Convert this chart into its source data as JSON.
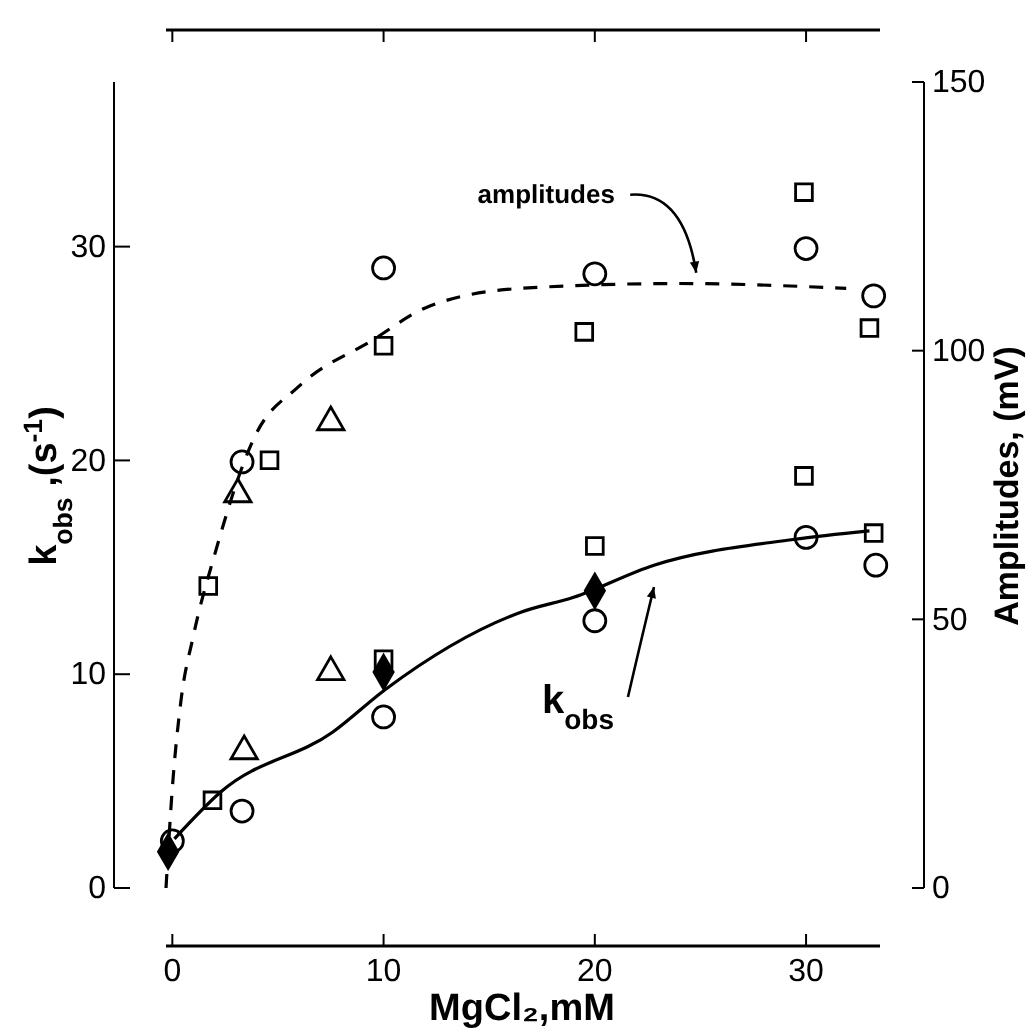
{
  "chart_data": {
    "type": "scatter",
    "xlabel": "MgCl₂,mM",
    "ylabel": "k$_{obs}$ ,(s$^{-1}$)",
    "y2label": "Amplitudes, (mV)",
    "xlim": [
      -0.3,
      33.5
    ],
    "xticks": [
      0,
      10,
      20,
      30
    ],
    "ylim": [
      0,
      37.7
    ],
    "yticks": [
      0,
      10,
      20,
      30
    ],
    "y2lim": [
      0,
      150
    ],
    "y2ticks": [
      0,
      50,
      100,
      150
    ],
    "grid": false,
    "annotations": [
      {
        "text": "amplitudes",
        "x": 24.8,
        "y": 28.5
      },
      {
        "text": "k$_{obs}$",
        "x": 22.8,
        "y": 13.8
      }
    ],
    "series": [
      {
        "marker": "circle",
        "color": "#000000",
        "axis": "y2",
        "x": [
          3.3,
          10,
          20,
          30,
          33.2
        ],
        "values": [
          79.3,
          115.4,
          114.3,
          119,
          110.2
        ]
      },
      {
        "marker": "square",
        "color": "#000000",
        "axis": "y2",
        "x": [
          1.7,
          4.6,
          10,
          19.5,
          29.9,
          29.9,
          33
        ],
        "values": [
          56.2,
          79.6,
          100.9,
          103.5,
          129.5,
          76.7,
          104.2
        ]
      },
      {
        "marker": "triangle",
        "color": "#000000",
        "axis": "y2",
        "x": [
          3.1,
          7.5
        ],
        "values": [
          73.3,
          86.7
        ]
      },
      {
        "marker": "circle",
        "color": "#000000",
        "x": [
          0,
          3.3,
          10,
          20,
          30,
          33.3
        ],
        "values": [
          2.2,
          3.6,
          8.0,
          12.5,
          16.4,
          15.1
        ]
      },
      {
        "marker": "square",
        "color": "#000000",
        "x": [
          1.9,
          10,
          20,
          33.2
        ],
        "values": [
          4.1,
          10.7,
          16.0,
          16.6
        ]
      },
      {
        "marker": "triangle",
        "color": "#000000",
        "x": [
          3.4,
          7.5
        ],
        "values": [
          6.4,
          10.1
        ]
      },
      {
        "marker": "diamond",
        "color": "#000000",
        "x": [
          -0.2,
          10,
          20
        ],
        "values": [
          1.7,
          10.1,
          13.9
        ]
      },
      {
        "type": "line",
        "line_style": "dashed",
        "marker": "none",
        "color": "#000000",
        "axis": "y2",
        "x": [
          -0.3,
          0,
          0.4,
          1,
          2,
          3.9,
          6,
          9.5,
          12,
          16.5,
          24,
          31.9
        ],
        "values": [
          0,
          18.6,
          34.6,
          47,
          62,
          84,
          93.4,
          102,
          108,
          111.6,
          112.5,
          111.6
        ]
      },
      {
        "type": "line",
        "line_style": "solid",
        "marker": "none",
        "color": "#000000",
        "x": [
          0.1,
          2.3,
          7.6,
          10.1,
          16.5,
          19,
          22.8,
          29.4,
          33
        ],
        "values": [
          2.3,
          4.5,
          7.3,
          9.3,
          12.9,
          13.6,
          15.1,
          16.3,
          16.7
        ]
      }
    ]
  }
}
